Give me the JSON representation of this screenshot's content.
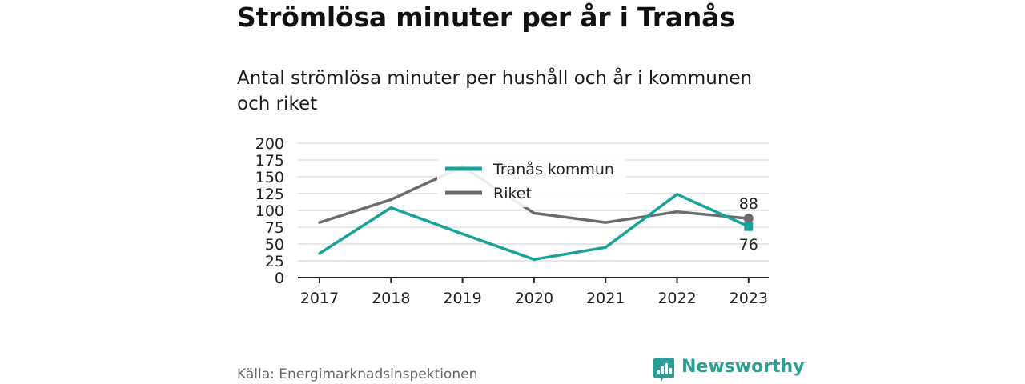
{
  "title": "Strömlösa minuter per år i Tranås",
  "subtitle": "Antal strömlösa minuter per hushåll och år i kommunen och riket",
  "source": "Källa: Energimarknadsinspektionen",
  "brand": "Newsworthy",
  "colors": {
    "tranas": "#17a39a",
    "riket": "#6c6b72",
    "grid": "#dddddd",
    "axis": "#222222",
    "brand": "#2b9f95"
  },
  "chart_data": {
    "type": "line",
    "x": [
      "2017",
      "2018",
      "2019",
      "2020",
      "2021",
      "2022",
      "2023"
    ],
    "series": [
      {
        "name": "Tranås kommun",
        "values": [
          36,
          104,
          65,
          27,
          45,
          124,
          76
        ]
      },
      {
        "name": "Riket",
        "values": [
          82,
          116,
          165,
          96,
          82,
          98,
          88
        ]
      }
    ],
    "ylim": [
      0,
      200
    ],
    "yticks": [
      "0",
      "25",
      "50",
      "75",
      "100",
      "125",
      "150",
      "175",
      "200"
    ],
    "end_labels": [
      "76",
      "88"
    ],
    "grid": true,
    "legend": "top-center"
  }
}
